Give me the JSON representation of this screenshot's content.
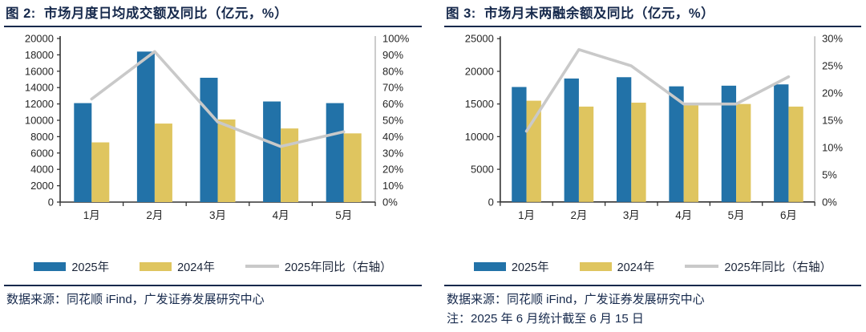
{
  "colors": {
    "navy": "#16294C",
    "bar2025": "#2272A8",
    "bar2024": "#DFC55F",
    "line": "#C9C9C9",
    "axis_dark": "#333333",
    "axis_light": "#BFBFBF",
    "tick_label": "#262626"
  },
  "panels": [
    {
      "title": "图 2:  市场月度日均成交额及同比（亿元，%）",
      "source": "数据来源：同花顺 iFind，广发证券发展研究中心",
      "note": ""
    },
    {
      "title": "图 3:  市场月末两融余额及同比（亿元，%）",
      "source": "数据来源：同花顺 iFind，广发证券发展研究中心",
      "note": "注：2025 年 6 月统计截至 6 月 15 日"
    }
  ],
  "chart_data": [
    {
      "type": "bar+line",
      "title": "市场月度日均成交额及同比（亿元，%）",
      "categories": [
        "1月",
        "2月",
        "3月",
        "4月",
        "5月"
      ],
      "series": [
        {
          "name": "2025年",
          "type": "bar",
          "axis": "left",
          "color_key": "bar2025",
          "values": [
            12100,
            18400,
            15200,
            12300,
            12100
          ]
        },
        {
          "name": "2024年",
          "type": "bar",
          "axis": "left",
          "color_key": "bar2024",
          "values": [
            7300,
            9600,
            10100,
            9000,
            8400
          ]
        },
        {
          "name": "2025年同比（右轴）",
          "type": "line",
          "axis": "right",
          "color_key": "line",
          "values": [
            63,
            92,
            49,
            34,
            43
          ]
        }
      ],
      "left_axis": {
        "min": 0,
        "max": 20000,
        "step": 2000,
        "suffix": ""
      },
      "right_axis": {
        "min": 0,
        "max": 100,
        "step": 10,
        "suffix": "%"
      },
      "grid": false,
      "legend_position": "bottom"
    },
    {
      "type": "bar+line",
      "title": "市场月末两融余额及同比（亿元，%）",
      "categories": [
        "1月",
        "2月",
        "3月",
        "4月",
        "5月",
        "6月"
      ],
      "series": [
        {
          "name": "2025年",
          "type": "bar",
          "axis": "left",
          "color_key": "bar2025",
          "values": [
            17600,
            18900,
            19100,
            17700,
            17800,
            18000
          ]
        },
        {
          "name": "2024年",
          "type": "bar",
          "axis": "left",
          "color_key": "bar2024",
          "values": [
            15500,
            14600,
            15200,
            14800,
            15000,
            14600
          ]
        },
        {
          "name": "2025年同比（右轴）",
          "type": "line",
          "axis": "right",
          "color_key": "line",
          "values": [
            13,
            28,
            25,
            18,
            18,
            23
          ]
        }
      ],
      "left_axis": {
        "min": 0,
        "max": 25000,
        "step": 5000,
        "suffix": ""
      },
      "right_axis": {
        "min": 0,
        "max": 30,
        "step": 5,
        "suffix": "%"
      },
      "grid": false,
      "legend_position": "bottom"
    }
  ]
}
